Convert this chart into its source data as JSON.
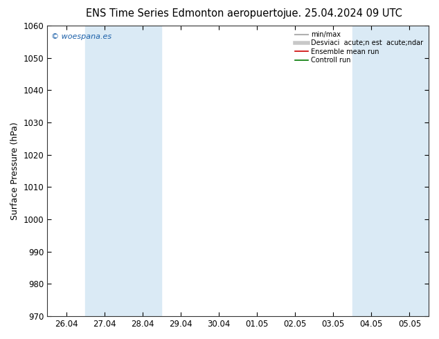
{
  "title_left": "ENS Time Series Edmonton aeropuerto",
  "title_right": "jue. 25.04.2024 09 UTC",
  "ylabel": "Surface Pressure (hPa)",
  "ylim": [
    970,
    1060
  ],
  "yticks": [
    970,
    980,
    990,
    1000,
    1010,
    1020,
    1030,
    1040,
    1050,
    1060
  ],
  "xtick_labels": [
    "26.04",
    "27.04",
    "28.04",
    "29.04",
    "30.04",
    "01.05",
    "02.05",
    "03.05",
    "04.05",
    "05.05"
  ],
  "bg_color": "#ffffff",
  "plot_bg_color": "#ffffff",
  "shaded_bands": [
    {
      "xstart": 1,
      "xend": 3,
      "color": "#daeaf5"
    },
    {
      "xstart": 8,
      "xend": 10,
      "color": "#daeaf5"
    }
  ],
  "watermark": "© woespana.es",
  "legend_items": [
    {
      "label": "min/max",
      "color": "#b0b0b0",
      "lw": 1.5
    },
    {
      "label": "Desviaci  acute;n est  acute;ndar",
      "color": "#c8c8c8",
      "lw": 4
    },
    {
      "label": "Ensemble mean run",
      "color": "#cc0000",
      "lw": 1.2
    },
    {
      "label": "Controll run",
      "color": "#007700",
      "lw": 1.2
    }
  ],
  "num_xpoints": 10,
  "title_fontsize": 10.5,
  "tick_fontsize": 8.5,
  "ylabel_fontsize": 9
}
